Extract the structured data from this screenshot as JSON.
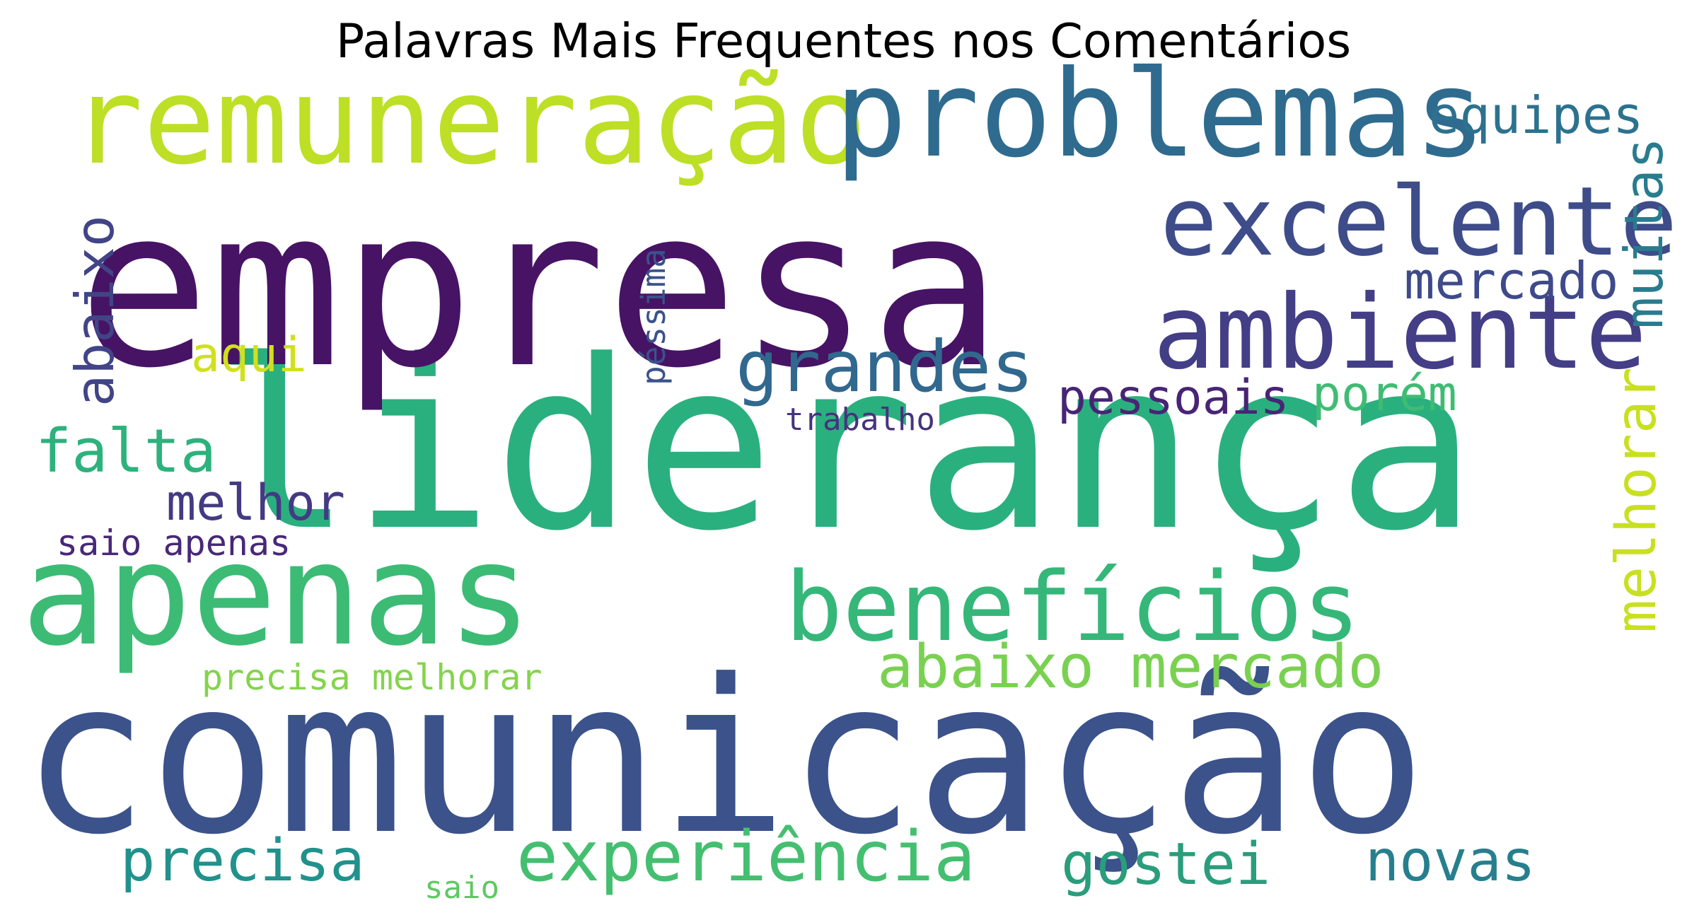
{
  "chart_data": {
    "type": "wordcloud",
    "title": "Palavras Mais Frequentes nos Comentários",
    "words": [
      {
        "text": "liderança",
        "weight": 1.0,
        "color": "#2ab07f"
      },
      {
        "text": "empresa",
        "weight": 0.92,
        "color": "#471365"
      },
      {
        "text": "comunicação",
        "weight": 0.9,
        "color": "#3b528b"
      },
      {
        "text": "apenas",
        "weight": 0.58,
        "color": "#3cbb75"
      },
      {
        "text": "remuneração",
        "weight": 0.5,
        "color": "#bddf26"
      },
      {
        "text": "problemas",
        "weight": 0.49,
        "color": "#2f6b8e"
      },
      {
        "text": "ambiente",
        "weight": 0.42,
        "color": "#433e85"
      },
      {
        "text": "excelente",
        "weight": 0.4,
        "color": "#3e4c8a"
      },
      {
        "text": "benefícios",
        "weight": 0.39,
        "color": "#35b779"
      },
      {
        "text": "grandes",
        "weight": 0.3,
        "color": "#31688e"
      },
      {
        "text": "experiência",
        "weight": 0.29,
        "color": "#44bf70"
      },
      {
        "text": "abaixo mercado",
        "weight": 0.25,
        "color": "#7ad151"
      },
      {
        "text": "falta",
        "weight": 0.25,
        "color": "#2db27d"
      },
      {
        "text": "precisa",
        "weight": 0.24,
        "color": "#21918c"
      },
      {
        "text": "gostei",
        "weight": 0.24,
        "color": "#2a9d7c"
      },
      {
        "text": "novas",
        "weight": 0.23,
        "color": "#277f8e"
      },
      {
        "text": "melhorar",
        "weight": 0.23,
        "color": "#c8e020"
      },
      {
        "text": "abaixo",
        "weight": 0.22,
        "color": "#414487"
      },
      {
        "text": "muitas",
        "weight": 0.22,
        "color": "#287c8e"
      },
      {
        "text": "mercado",
        "weight": 0.22,
        "color": "#3e4a89"
      },
      {
        "text": "equipes",
        "weight": 0.21,
        "color": "#2c728e"
      },
      {
        "text": "melhor",
        "weight": 0.2,
        "color": "#443a83"
      },
      {
        "text": "pessoais",
        "weight": 0.2,
        "color": "#482475"
      },
      {
        "text": "porém",
        "weight": 0.19,
        "color": "#3fbc73"
      },
      {
        "text": "aqui",
        "weight": 0.19,
        "color": "#d0e11c"
      },
      {
        "text": "precisa melhorar",
        "weight": 0.16,
        "color": "#84d44b"
      },
      {
        "text": "saio apenas",
        "weight": 0.16,
        "color": "#482878"
      },
      {
        "text": "péssima",
        "weight": 0.15,
        "color": "#3b528b"
      },
      {
        "text": "trabalho",
        "weight": 0.14,
        "color": "#46337e"
      },
      {
        "text": "saio",
        "weight": 0.14,
        "color": "#5ec962"
      }
    ]
  }
}
